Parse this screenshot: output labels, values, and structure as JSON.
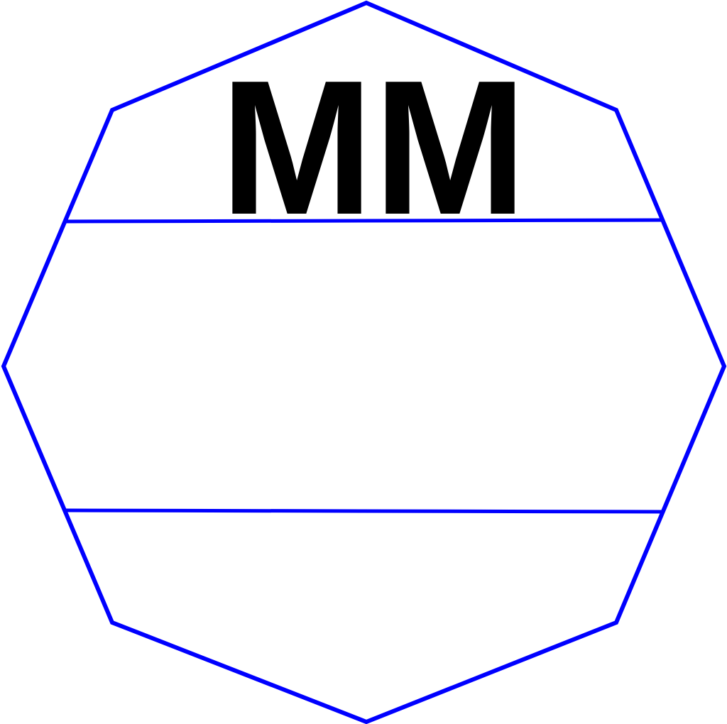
{
  "label": {
    "text": "MM"
  },
  "colors": {
    "outline": "#0000ff",
    "text": "#000000",
    "background": "#ffffff"
  },
  "shape": {
    "kind": "octagon",
    "divider_count": 2
  }
}
